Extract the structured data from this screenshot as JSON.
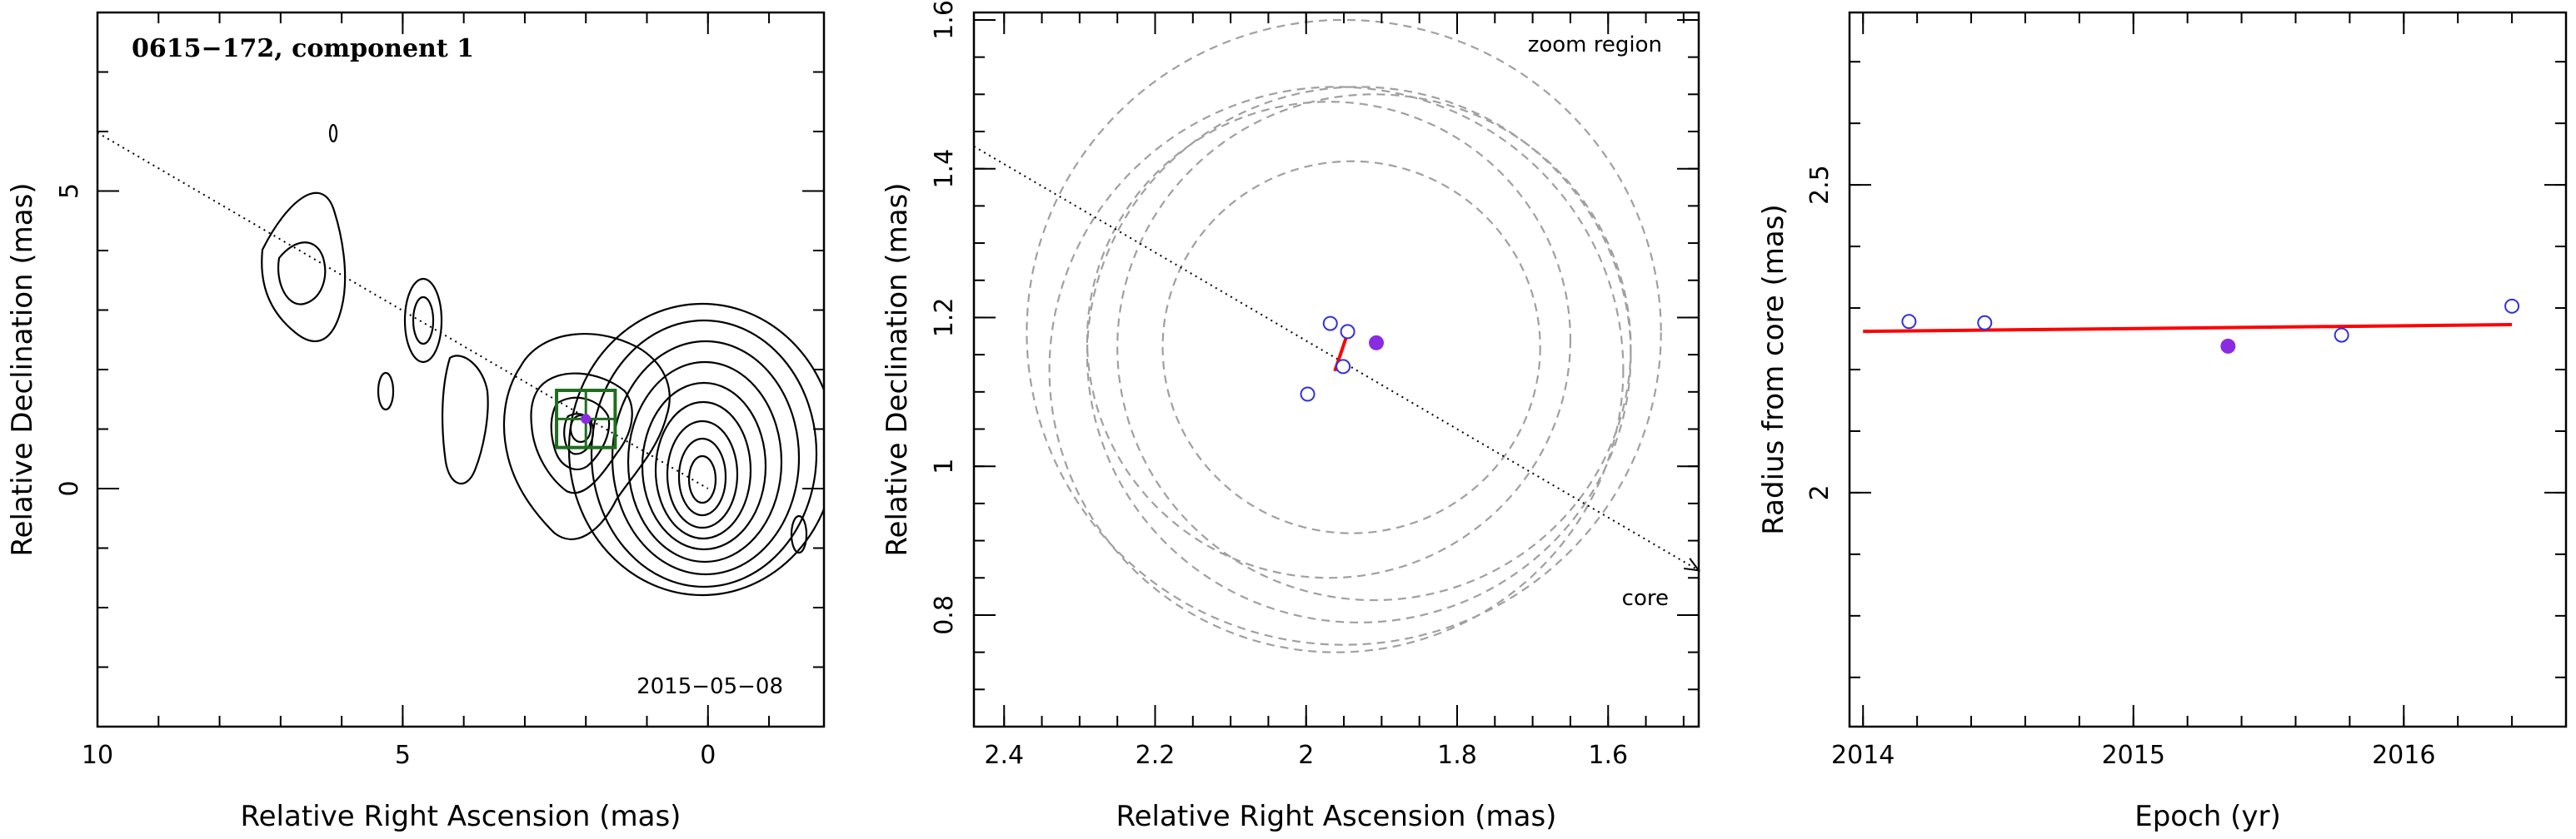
{
  "colors": {
    "open_marker": "#3030e0",
    "filled_marker": "#8a2be2",
    "fit_line": "#ff0000",
    "box": "#1e6e1e",
    "contours": "#000000",
    "circles": "#a0a0a0"
  },
  "chart_data": [
    {
      "type": "contour",
      "title": "0615−172, component 1",
      "epoch_label": "2015−05−08",
      "xlabel": "Relative Right Ascension (mas)",
      "ylabel": "Relative Declination (mas)",
      "xlim": [
        10,
        -1.9
      ],
      "ylim": [
        -4,
        8
      ],
      "xticks": [
        10,
        5,
        0
      ],
      "xtick_labels": [
        "10",
        "5",
        "0"
      ],
      "yticks": [
        0,
        5
      ],
      "ytick_labels": [
        "0",
        "5"
      ],
      "component": {
        "x": 2.0,
        "y": 1.17
      },
      "zoom_box": {
        "x_range": [
          1.52,
          2.48
        ],
        "y_range": [
          0.69,
          1.65
        ]
      },
      "jet_axis": [
        [
          10,
          5.98
        ],
        [
          0,
          0
        ]
      ]
    },
    {
      "type": "scatter",
      "xlabel": "Relative Right Ascension (mas)",
      "ylabel": "Relative Declination (mas)",
      "xlim": [
        2.44,
        1.48
      ],
      "ylim": [
        0.65,
        1.61
      ],
      "xticks": [
        2.4,
        2.2,
        2.0,
        1.8,
        1.6
      ],
      "xtick_labels": [
        "2.4",
        "2.2",
        "2",
        "1.8",
        "1.6"
      ],
      "yticks": [
        0.8,
        1.0,
        1.2,
        1.4,
        1.6
      ],
      "ytick_labels": [
        "0.8",
        "1",
        "1.2",
        "1.4",
        "1.6"
      ],
      "annotations": [
        "zoom region",
        "core"
      ],
      "open_points": [
        {
          "x": 1.998,
          "y": 1.097
        },
        {
          "x": 1.968,
          "y": 1.192
        },
        {
          "x": 1.945,
          "y": 1.181
        },
        {
          "x": 1.951,
          "y": 1.134
        }
      ],
      "filled_points": [
        {
          "x": 1.907,
          "y": 1.166
        }
      ],
      "fit_segment": [
        [
          1.944,
          1.182
        ],
        [
          1.962,
          1.128
        ]
      ],
      "circles": [
        {
          "cx": 1.95,
          "cy": 1.18,
          "r": 0.42
        },
        {
          "cx": 1.96,
          "cy": 1.13,
          "r": 0.38
        },
        {
          "cx": 1.93,
          "cy": 1.15,
          "r": 0.36
        },
        {
          "cx": 1.91,
          "cy": 1.16,
          "r": 0.34
        },
        {
          "cx": 1.97,
          "cy": 1.17,
          "r": 0.32
        },
        {
          "cx": 1.94,
          "cy": 1.16,
          "r": 0.25
        }
      ],
      "jet_axis": [
        [
          2.44,
          1.43
        ],
        [
          1.48,
          0.86
        ]
      ]
    },
    {
      "type": "scatter",
      "xlabel": "Epoch (yr)",
      "ylabel": "Radius from core (mas)",
      "xlim": [
        2013.95,
        2016.6
      ],
      "ylim": [
        1.62,
        2.78
      ],
      "xticks": [
        2014,
        2015,
        2016
      ],
      "xtick_labels": [
        "2014",
        "2015",
        "2016"
      ],
      "yticks": [
        2.0,
        2.5
      ],
      "ytick_labels": [
        "2",
        "2.5"
      ],
      "open_points": [
        {
          "x": 2014.17,
          "y": 2.278
        },
        {
          "x": 2014.45,
          "y": 2.276
        },
        {
          "x": 2015.77,
          "y": 2.256
        },
        {
          "x": 2016.4,
          "y": 2.303
        }
      ],
      "filled_points": [
        {
          "x": 2015.35,
          "y": 2.238
        }
      ],
      "fit_line": [
        [
          2014.0,
          2.262
        ],
        [
          2016.4,
          2.273
        ]
      ]
    }
  ]
}
